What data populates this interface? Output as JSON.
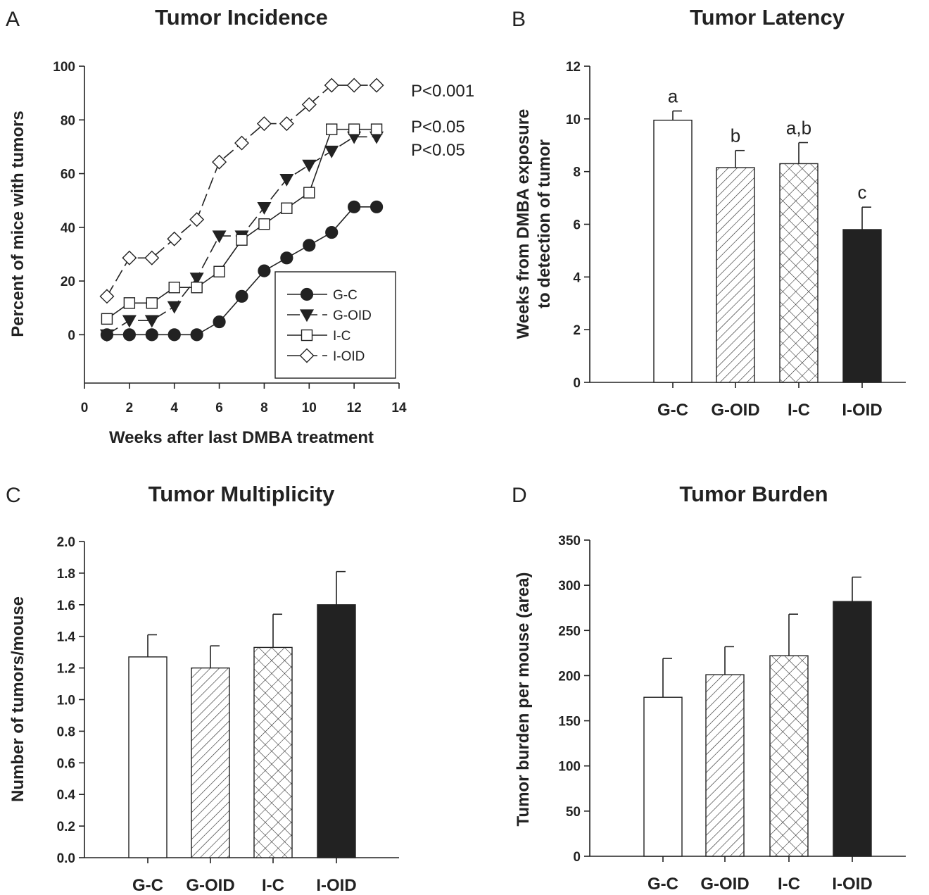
{
  "chart_data": [
    {
      "panel": "A",
      "type": "line",
      "title": "Tumor Incidence",
      "xlabel": "Weeks after last DMBA treatment",
      "ylabel": "Percent of mice with tumors",
      "xlim": [
        0,
        14
      ],
      "ylim": [
        -18,
        100
      ],
      "xticks": [
        0,
        2,
        4,
        6,
        8,
        10,
        12,
        14
      ],
      "yticks": [
        0,
        20,
        40,
        60,
        80,
        100
      ],
      "legend": "bottom-right",
      "series": [
        {
          "name": "G-C",
          "marker": "circle-filled",
          "line": "solid",
          "x": [
            1,
            2,
            3,
            4,
            5,
            6,
            7,
            8,
            9,
            10,
            11,
            12,
            13
          ],
          "y": [
            0,
            0,
            0,
            0,
            0,
            4.8,
            14.3,
            23.8,
            28.6,
            33.3,
            38.1,
            47.6,
            47.6
          ]
        },
        {
          "name": "G-OID",
          "marker": "triangle-down-filled",
          "line": "dashed",
          "x": [
            1,
            2,
            3,
            4,
            5,
            6,
            7,
            8,
            9,
            10,
            11,
            12,
            13
          ],
          "y": [
            0,
            5.3,
            5.3,
            10.5,
            21.1,
            36.8,
            36.8,
            47.4,
            57.9,
            63.2,
            68.4,
            73.7,
            73.7
          ]
        },
        {
          "name": "I-C",
          "marker": "square-open",
          "line": "solid",
          "x": [
            1,
            2,
            3,
            4,
            5,
            6,
            7,
            8,
            9,
            10,
            11,
            12,
            13
          ],
          "y": [
            5.9,
            11.8,
            11.8,
            17.6,
            17.6,
            23.5,
            35.3,
            41.2,
            47.1,
            52.9,
            76.5,
            76.5,
            76.5
          ]
        },
        {
          "name": "I-OID",
          "marker": "diamond-open",
          "line": "dashed",
          "x": [
            1,
            2,
            3,
            4,
            5,
            6,
            7,
            8,
            9,
            10,
            11,
            12,
            13
          ],
          "y": [
            14.3,
            28.6,
            28.6,
            35.7,
            42.9,
            64.3,
            71.4,
            78.6,
            78.6,
            85.7,
            92.9,
            92.9,
            92.9
          ]
        }
      ],
      "annotations": [
        "P<0.001",
        "P<0.05",
        "P<0.05"
      ]
    },
    {
      "panel": "B",
      "type": "bar",
      "title": "Tumor Latency",
      "ylabel": "Weeks from DMBA exposure to detection of tumor",
      "ylabel_lines": [
        "Weeks from DMBA exposure",
        "to detection of tumor"
      ],
      "categories": [
        "G-C",
        "G-OID",
        "I-C",
        "I-OID"
      ],
      "values": [
        9.95,
        8.15,
        8.3,
        5.8
      ],
      "errors": [
        0.35,
        0.65,
        0.8,
        0.85
      ],
      "significance_labels": [
        "a",
        "b",
        "a,b",
        "c"
      ],
      "ylim": [
        0,
        12
      ],
      "yticks": [
        0,
        2,
        4,
        6,
        8,
        10,
        12
      ],
      "fills": [
        "open",
        "diagonal-hatch",
        "cross-hatch",
        "solid"
      ]
    },
    {
      "panel": "C",
      "type": "bar",
      "title": "Tumor Multiplicity",
      "ylabel": "Number of tumors/mouse",
      "categories": [
        "G-C",
        "G-OID",
        "I-C",
        "I-OID"
      ],
      "values": [
        1.27,
        1.2,
        1.33,
        1.6
      ],
      "errors": [
        0.14,
        0.14,
        0.21,
        0.21
      ],
      "ylim": [
        0,
        2.0
      ],
      "yticks": [
        "0.0",
        "0.2",
        "0.4",
        "0.6",
        "0.8",
        "1.0",
        "1.2",
        "1.4",
        "1.6",
        "1.8",
        "2.0"
      ],
      "fills": [
        "open",
        "diagonal-hatch",
        "cross-hatch",
        "solid"
      ]
    },
    {
      "panel": "D",
      "type": "bar",
      "title": "Tumor Burden",
      "ylabel": "Tumor burden per mouse (area)",
      "categories": [
        "G-C",
        "G-OID",
        "I-C",
        "I-OID"
      ],
      "values": [
        176,
        201,
        222,
        282
      ],
      "errors": [
        43,
        31,
        46,
        27
      ],
      "ylim": [
        0,
        350
      ],
      "yticks": [
        0,
        50,
        100,
        150,
        200,
        250,
        300,
        350
      ],
      "fills": [
        "open",
        "diagonal-hatch",
        "cross-hatch",
        "solid"
      ]
    }
  ],
  "colors": {
    "ink": "#222222",
    "background": "#ffffff"
  }
}
